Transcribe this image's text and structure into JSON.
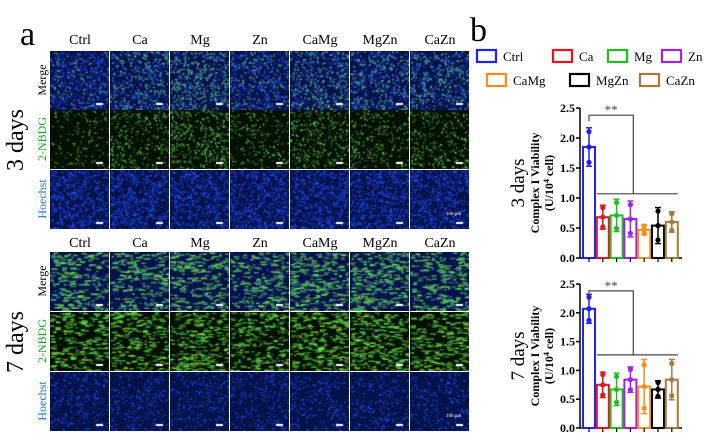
{
  "panel_a": {
    "letter": "a",
    "groups": [
      "Ctrl",
      "Ca",
      "Mg",
      "Zn",
      "CaMg",
      "MgZn",
      "CaZn"
    ],
    "timepoints": [
      "3 days",
      "7 days"
    ],
    "channels": [
      "Merge",
      "2-NBDG",
      "Hoechst"
    ],
    "channel_colors": [
      "#000000",
      "#1aa51a",
      "#1a6fd6"
    ],
    "scale_bar": "100 μm"
  },
  "panel_b": {
    "letter": "b"
  },
  "chart_data": [
    {
      "type": "bar",
      "title": "3 days",
      "ylabel": "Complex I Viability (U/10^4 cell)",
      "ylabel_line1": "Complex I Viability",
      "ylabel_line2": "(U/10",
      "ylabel_sup": "4",
      "ylabel_line2_end": " cell)",
      "categories": [
        "Ctrl",
        "Ca",
        "Mg",
        "Zn",
        "CaMg",
        "MgZn",
        "CaZn"
      ],
      "colors": [
        "#1f1fff",
        "#e8141c",
        "#1fbf1f",
        "#a020f0",
        "#ff8c1a",
        "#000000",
        "#a67a3a"
      ],
      "values": [
        1.85,
        0.68,
        0.71,
        0.65,
        0.47,
        0.54,
        0.6
      ],
      "errors": [
        0.32,
        0.2,
        0.27,
        0.3,
        0.08,
        0.3,
        0.17
      ],
      "ylim": [
        0,
        2.5
      ],
      "yticks": [
        "0.0",
        "0.5",
        "1.0",
        "1.5",
        "2.0",
        "2.5"
      ],
      "annotation": "**"
    },
    {
      "type": "bar",
      "title": "7 days",
      "ylabel": "Complex I Viability (U/10^4 cell)",
      "ylabel_line1": "Complex I Viability",
      "ylabel_line2": "(U/10",
      "ylabel_sup": "4",
      "ylabel_line2_end": " cell)",
      "categories": [
        "Ctrl",
        "Ca",
        "Mg",
        "Zn",
        "CaMg",
        "MgZn",
        "CaZn"
      ],
      "colors": [
        "#1f1fff",
        "#e8141c",
        "#1fbf1f",
        "#a020f0",
        "#ff8c1a",
        "#000000",
        "#a67a3a"
      ],
      "values": [
        2.07,
        0.75,
        0.67,
        0.84,
        0.72,
        0.67,
        0.84
      ],
      "errors": [
        0.25,
        0.22,
        0.28,
        0.22,
        0.47,
        0.15,
        0.35
      ],
      "ylim": [
        0,
        2.5
      ],
      "yticks": [
        "0.0",
        "0.5",
        "1.0",
        "1.5",
        "2.0",
        "2.5"
      ],
      "annotation": "**"
    }
  ],
  "legend": [
    "Ctrl",
    "Ca",
    "Mg",
    "Zn",
    "CaMg",
    "MgZn",
    "CaZn"
  ]
}
